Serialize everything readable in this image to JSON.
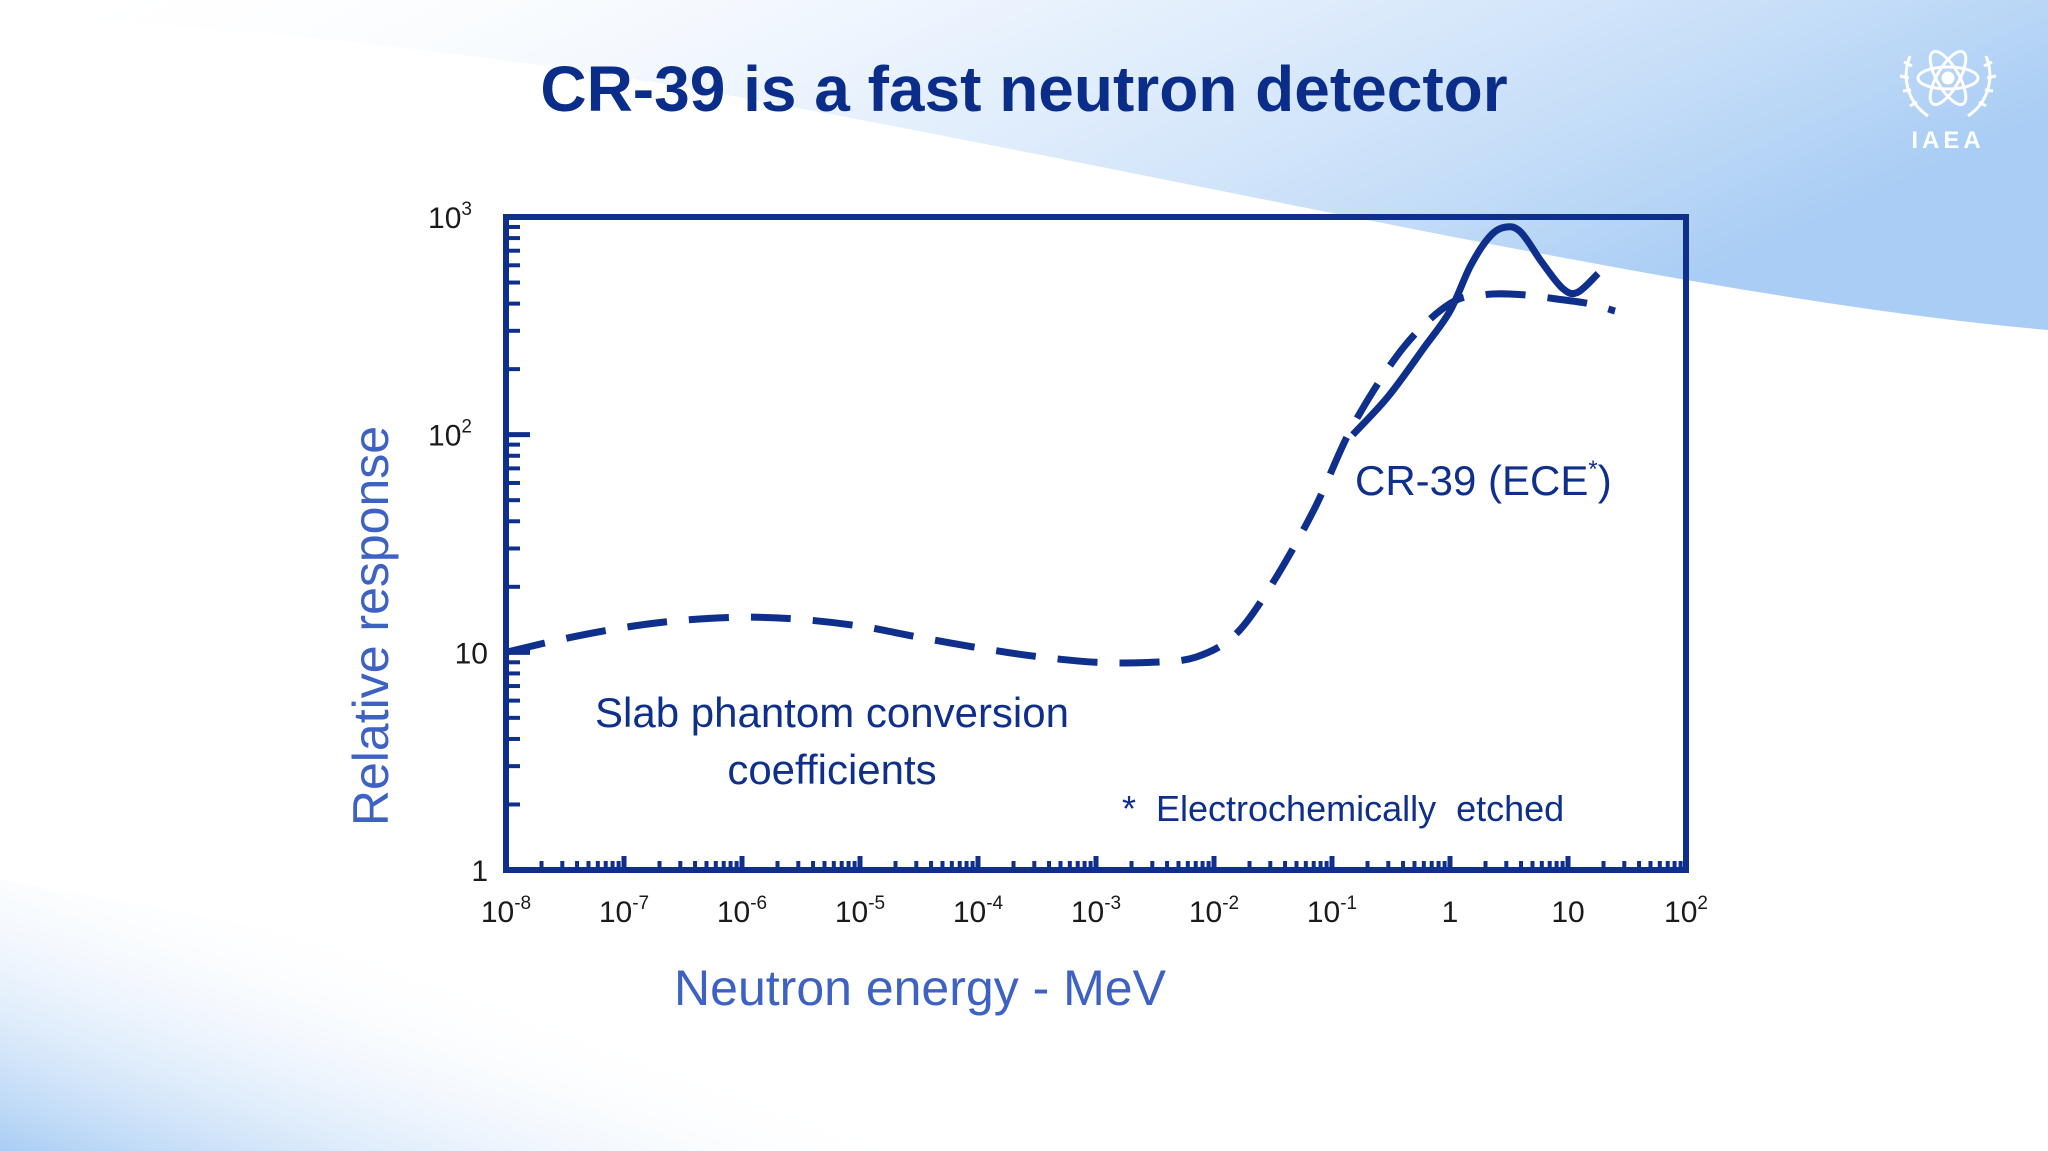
{
  "slide": {
    "title": "CR-39 is a fast neutron detector"
  },
  "logo": {
    "text": "IAEA",
    "icon": "atom-laurel-emblem-icon"
  },
  "colors": {
    "title": "#0a2d8a",
    "axis_label": "#3d62c4",
    "curve": "#0e2f8c",
    "frame": "#0e2f8c",
    "background_gradient": "#a9cdf4"
  },
  "chart_data": {
    "type": "line",
    "xlabel": "Neutron energy - MeV",
    "ylabel": "Relative response",
    "xscale": "log",
    "yscale": "log",
    "xlim": [
      1e-08,
      100
    ],
    "ylim": [
      1,
      1000
    ],
    "x_ticks": [
      {
        "value": 1e-08,
        "base": "10",
        "exp": "-8"
      },
      {
        "value": 1e-07,
        "base": "10",
        "exp": "-7"
      },
      {
        "value": 1e-06,
        "base": "10",
        "exp": "-6"
      },
      {
        "value": 1e-05,
        "base": "10",
        "exp": "-5"
      },
      {
        "value": 0.0001,
        "base": "10",
        "exp": "-4"
      },
      {
        "value": 0.001,
        "base": "10",
        "exp": "-3"
      },
      {
        "value": 0.01,
        "base": "10",
        "exp": "-2"
      },
      {
        "value": 0.1,
        "base": "10",
        "exp": "-1"
      },
      {
        "value": 1,
        "base": "1",
        "exp": ""
      },
      {
        "value": 10,
        "base": "10",
        "exp": ""
      },
      {
        "value": 100,
        "base": "10",
        "exp": "2"
      }
    ],
    "y_ticks": [
      {
        "value": 1,
        "base": "1",
        "exp": ""
      },
      {
        "value": 10,
        "base": "10",
        "exp": ""
      },
      {
        "value": 100,
        "base": "10",
        "exp": "2"
      },
      {
        "value": 1000,
        "base": "10",
        "exp": "3"
      }
    ],
    "grid": false,
    "legend": "none",
    "series": [
      {
        "name": "Slab phantom conversion coefficients",
        "style": "dashed",
        "points": [
          [
            1e-08,
            10.0
          ],
          [
            3e-08,
            11.5
          ],
          [
            1e-07,
            13.0
          ],
          [
            3e-07,
            14.0
          ],
          [
            1e-06,
            14.5
          ],
          [
            3e-06,
            14.2
          ],
          [
            1e-05,
            13.2
          ],
          [
            3e-05,
            11.8
          ],
          [
            0.0001,
            10.5
          ],
          [
            0.0003,
            9.6
          ],
          [
            0.001,
            9.0
          ],
          [
            0.003,
            9.0
          ],
          [
            0.007,
            9.5
          ],
          [
            0.015,
            12.0
          ],
          [
            0.03,
            20.0
          ],
          [
            0.07,
            45.0
          ],
          [
            0.15,
            110.0
          ],
          [
            0.4,
            250.0
          ],
          [
            1.0,
            400.0
          ],
          [
            2.0,
            440.0
          ],
          [
            4.0,
            440.0
          ],
          [
            8.0,
            420.0
          ],
          [
            15.0,
            400.0
          ],
          [
            25.0,
            370.0
          ]
        ]
      },
      {
        "name": "CR-39 (ECE*)",
        "style": "solid",
        "points": [
          [
            0.15,
            100.0
          ],
          [
            0.3,
            150.0
          ],
          [
            0.6,
            250.0
          ],
          [
            1.0,
            370.0
          ],
          [
            1.5,
            600.0
          ],
          [
            2.2,
            820.0
          ],
          [
            3.0,
            900.0
          ],
          [
            4.0,
            850.0
          ],
          [
            6.0,
            620.0
          ],
          [
            9.0,
            470.0
          ],
          [
            12.0,
            450.0
          ],
          [
            18.0,
            550.0
          ]
        ]
      }
    ],
    "annotations": {
      "slab_label_line1": "Slab phantom conversion",
      "slab_label_line2": "coefficients",
      "cr39_label_main": "CR-39 (ECE",
      "cr39_label_sup": "*",
      "cr39_label_close": ")",
      "footnote": "*  Electrochemically  etched"
    }
  }
}
